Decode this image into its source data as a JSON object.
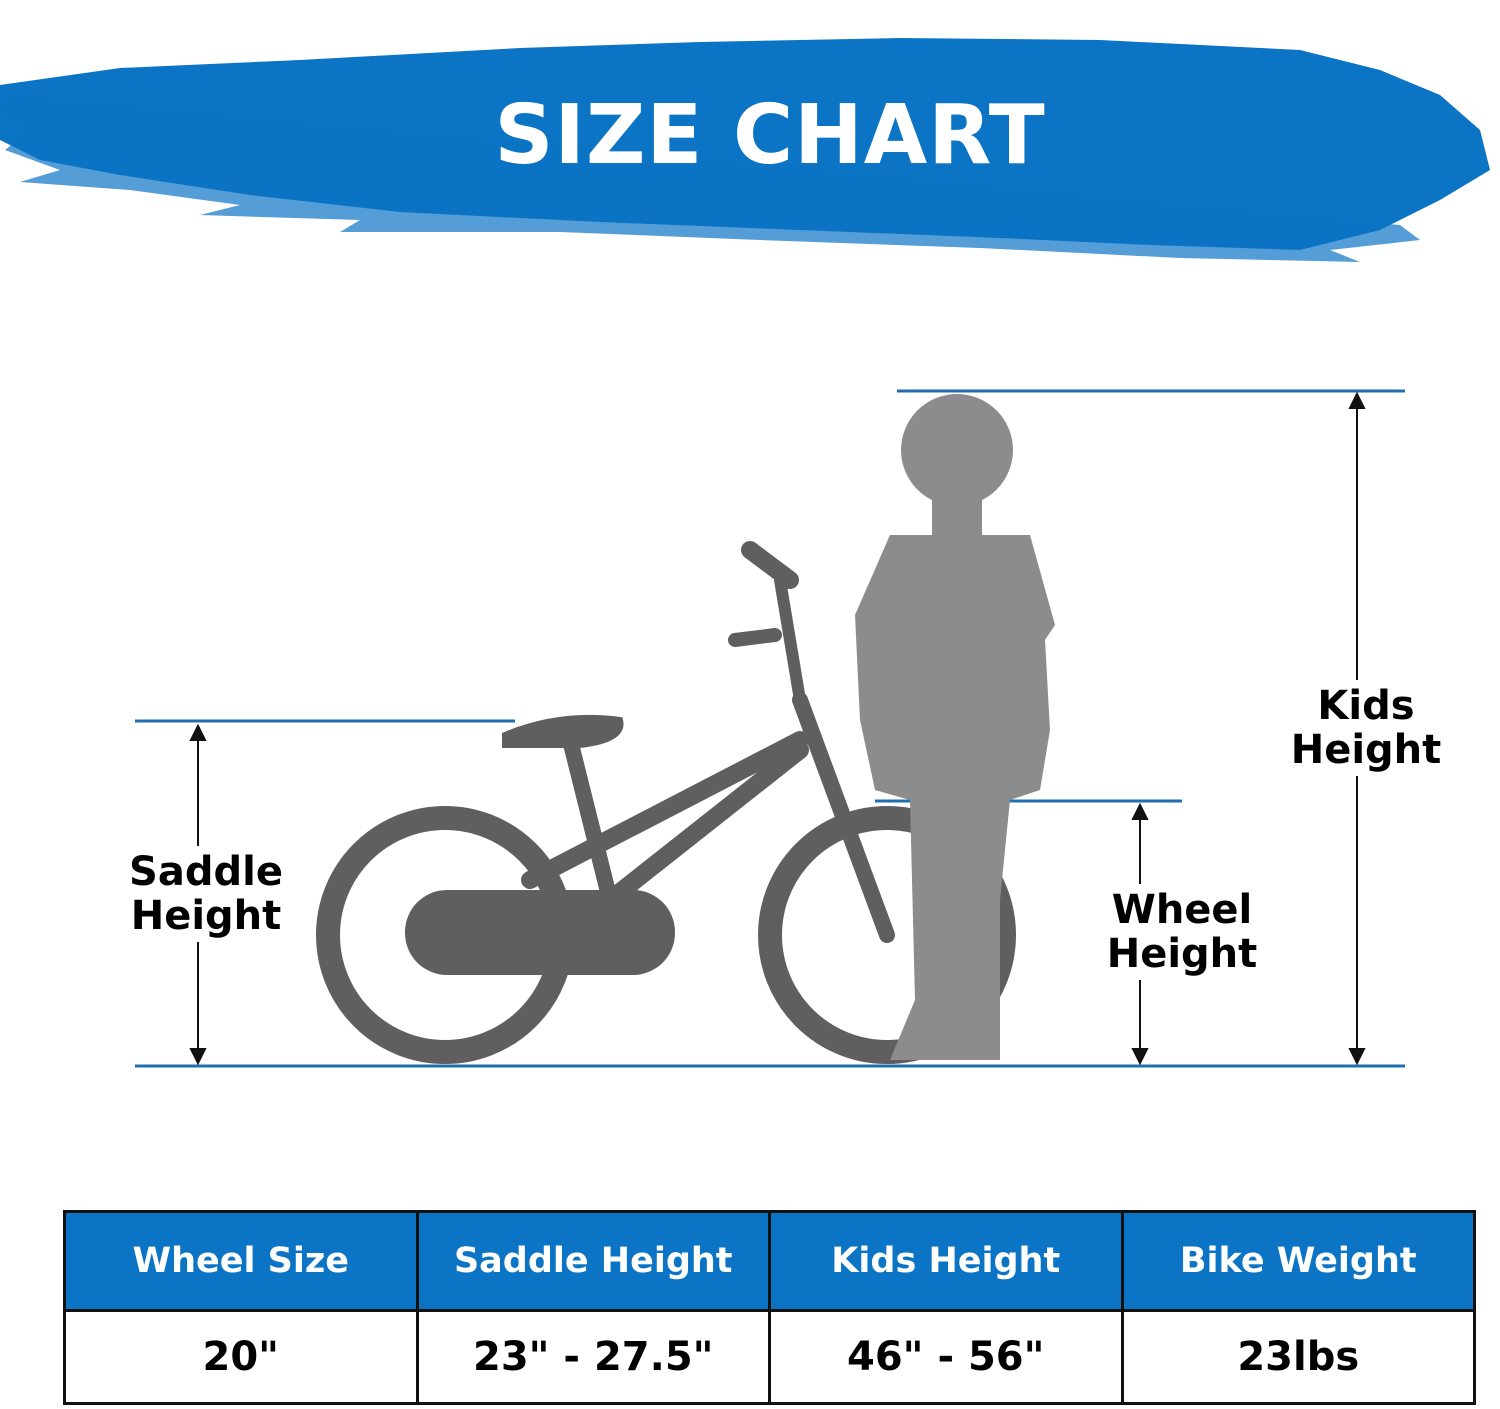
{
  "header": {
    "title": "SIZE CHART"
  },
  "diagram": {
    "labels": {
      "saddle": "Saddle Height",
      "wheel": "Wheel Height",
      "kids": "Kids Height"
    }
  },
  "table": {
    "header": [
      "Wheel Size",
      "Saddle Height",
      "Kids Height",
      "Bike Weight"
    ],
    "rows": [
      [
        "20\"",
        "23\" - 27.5\"",
        "46\" - 56\"",
        "23lbs"
      ]
    ]
  }
}
